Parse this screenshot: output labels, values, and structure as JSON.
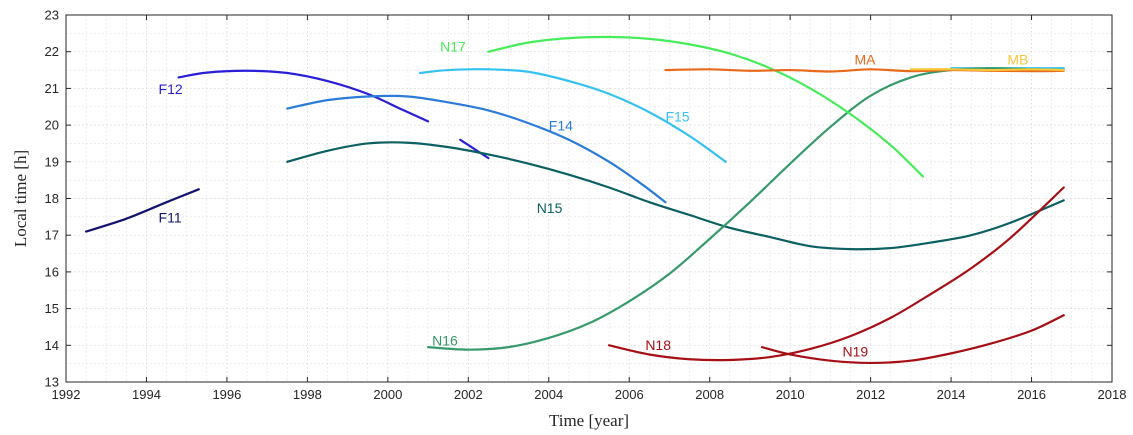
{
  "chart_data": {
    "type": "line",
    "title": "",
    "xlabel": "Time [year]",
    "ylabel": "Local time [h]",
    "xlim": [
      1992,
      2018
    ],
    "ylim": [
      13,
      23
    ],
    "xticks": [
      1992,
      1994,
      1996,
      1998,
      2000,
      2002,
      2004,
      2006,
      2008,
      2010,
      2012,
      2014,
      2016,
      2018
    ],
    "yticks": [
      13,
      14,
      15,
      16,
      17,
      18,
      19,
      20,
      21,
      22,
      23
    ],
    "grid": true,
    "legend": "labels placed next to each curve",
    "series": [
      {
        "name": "F11",
        "color": "#14146e",
        "x": [
          1992.5,
          1993.5,
          1994.5,
          1995.3
        ],
        "y": [
          17.1,
          17.45,
          17.9,
          18.25
        ]
      },
      {
        "name": "F12",
        "color": "#2a1fd6",
        "x": [
          1994.8,
          1995.5,
          1996.5,
          1997.5,
          1998.5,
          1999.5,
          2000.3,
          2001.0
        ],
        "y": [
          21.3,
          21.43,
          21.48,
          21.42,
          21.2,
          20.85,
          20.45,
          20.1
        ]
      },
      {
        "name": "F12",
        "color": "#2a1fd6",
        "x": [
          2001.8,
          2002.5
        ],
        "y": [
          19.6,
          19.1
        ]
      },
      {
        "name": "F14",
        "color": "#2b7cd8",
        "x": [
          1997.5,
          1998.5,
          1999.5,
          2000.5,
          2001.5,
          2002.5,
          2003.5,
          2004.5,
          2005.5,
          2006.3,
          2006.9
        ],
        "y": [
          20.45,
          20.68,
          20.78,
          20.78,
          20.62,
          20.4,
          20.05,
          19.6,
          19.0,
          18.4,
          17.9
        ]
      },
      {
        "name": "F15",
        "color": "#36c2f0",
        "x": [
          2000.8,
          2001.5,
          2002.5,
          2003.5,
          2004.5,
          2005.5,
          2006.5,
          2007.5,
          2008.4
        ],
        "y": [
          21.42,
          21.5,
          21.52,
          21.45,
          21.2,
          20.85,
          20.35,
          19.7,
          19.0
        ]
      },
      {
        "name": "F15",
        "color": "#36c2f0",
        "x": [
          2014.0,
          2016.8
        ],
        "y": [
          21.55,
          21.55
        ]
      },
      {
        "name": "N15",
        "color": "#0c6062",
        "x": [
          1997.5,
          1998.5,
          1999.5,
          2000.5,
          2001.5,
          2002.5,
          2003.5,
          2004.5,
          2005.5,
          2006.5,
          2007.5,
          2008.5,
          2009.5,
          2010.5,
          2011.5,
          2012.5,
          2013.5,
          2014.5,
          2015.5,
          2016.8
        ],
        "y": [
          19.0,
          19.3,
          19.5,
          19.52,
          19.4,
          19.2,
          18.95,
          18.65,
          18.3,
          17.9,
          17.55,
          17.2,
          16.95,
          16.7,
          16.62,
          16.65,
          16.8,
          17.0,
          17.35,
          17.95
        ]
      },
      {
        "name": "N16",
        "color": "#379a6c",
        "x": [
          2001.0,
          2002.0,
          2003.0,
          2004.0,
          2005.0,
          2006.0,
          2007.0,
          2008.0,
          2009.0,
          2010.0,
          2011.0,
          2012.0,
          2013.0,
          2014.0,
          2015.0,
          2016.0,
          2016.8
        ],
        "y": [
          13.95,
          13.88,
          13.95,
          14.2,
          14.6,
          15.2,
          15.95,
          16.9,
          17.9,
          18.95,
          19.95,
          20.8,
          21.3,
          21.5,
          21.55,
          21.52,
          21.5
        ]
      },
      {
        "name": "N17",
        "color": "#46ec5a",
        "x": [
          2002.5,
          2003.5,
          2004.5,
          2005.5,
          2006.5,
          2007.5,
          2008.5,
          2009.5,
          2010.5,
          2011.5,
          2012.5,
          2013.3
        ],
        "y": [
          22.0,
          22.25,
          22.37,
          22.4,
          22.35,
          22.2,
          21.95,
          21.55,
          21.0,
          20.3,
          19.45,
          18.6
        ]
      },
      {
        "name": "N18",
        "color": "#a50f15",
        "x": [
          2005.5,
          2006.5,
          2007.5,
          2008.5,
          2009.5,
          2010.5,
          2011.5,
          2012.5,
          2013.5,
          2014.5,
          2015.5,
          2016.8
        ],
        "y": [
          14.0,
          13.75,
          13.62,
          13.6,
          13.68,
          13.9,
          14.25,
          14.75,
          15.4,
          16.1,
          16.95,
          18.3
        ]
      },
      {
        "name": "N19",
        "color": "#a50f15",
        "x": [
          2009.3,
          2010.0,
          2011.0,
          2012.0,
          2013.0,
          2014.0,
          2015.0,
          2016.0,
          2016.8
        ],
        "y": [
          13.95,
          13.75,
          13.58,
          13.52,
          13.58,
          13.78,
          14.05,
          14.4,
          14.82
        ]
      },
      {
        "name": "MA",
        "color": "#e8691a",
        "x": [
          2006.9,
          2008.0,
          2009.0,
          2010.0,
          2011.0,
          2012.0,
          2013.0,
          2014.0,
          2015.0,
          2016.0,
          2016.8
        ],
        "y": [
          21.5,
          21.52,
          21.48,
          21.5,
          21.46,
          21.52,
          21.47,
          21.5,
          21.48,
          21.47,
          21.48
        ]
      },
      {
        "name": "MB",
        "color": "#f8c73a",
        "x": [
          2013.0,
          2014.0,
          2015.0,
          2016.0,
          2016.8
        ],
        "y": [
          21.52,
          21.52,
          21.5,
          21.52,
          21.5
        ]
      }
    ],
    "labels": [
      {
        "text": "F11",
        "color": "#14146e",
        "x": 1994.3,
        "y": 17.35
      },
      {
        "text": "F12",
        "color": "#2a1fd6",
        "x": 1994.3,
        "y": 20.85
      },
      {
        "text": "F14",
        "color": "#2b7cd8",
        "x": 2004.0,
        "y": 19.85
      },
      {
        "text": "F15",
        "color": "#36c2f0",
        "x": 2006.9,
        "y": 20.1
      },
      {
        "text": "N15",
        "color": "#0c6062",
        "x": 2003.7,
        "y": 17.6
      },
      {
        "text": "N16",
        "color": "#379a6c",
        "x": 2001.1,
        "y": 14.0
      },
      {
        "text": "N17",
        "color": "#46ec5a",
        "x": 2001.3,
        "y": 22.0
      },
      {
        "text": "N18",
        "color": "#a50f15",
        "x": 2006.4,
        "y": 13.87
      },
      {
        "text": "N19",
        "color": "#a50f15",
        "x": 2011.3,
        "y": 13.7
      },
      {
        "text": "MA",
        "color": "#e8691a",
        "x": 2011.6,
        "y": 21.65
      },
      {
        "text": "MB",
        "color": "#f8c73a",
        "x": 2015.4,
        "y": 21.65
      }
    ]
  }
}
